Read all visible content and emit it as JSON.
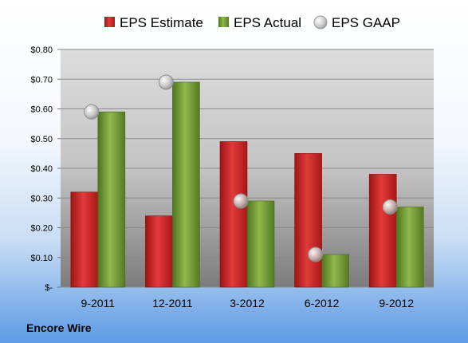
{
  "chart_data": {
    "type": "bar",
    "categories": [
      "9-2011",
      "12-2011",
      "3-2012",
      "6-2012",
      "9-2012"
    ],
    "series": [
      {
        "name": "EPS Estimate",
        "values": [
          0.32,
          0.24,
          0.49,
          0.45,
          0.38
        ],
        "color": "#d42a2a",
        "mark": "bar"
      },
      {
        "name": "EPS Actual",
        "values": [
          0.59,
          0.69,
          0.29,
          0.11,
          0.27
        ],
        "color": "#7aa23a",
        "mark": "bar"
      },
      {
        "name": "EPS GAAP",
        "values": [
          0.59,
          0.69,
          0.29,
          0.11,
          0.27
        ],
        "color": "#b8b8b8",
        "mark": "marker"
      }
    ],
    "ylim": [
      0,
      0.8
    ],
    "yticks": [
      0,
      0.1,
      0.2,
      0.3,
      0.4,
      0.5,
      0.6,
      0.7,
      0.8
    ],
    "ytick_labels": [
      "$-",
      "$0.10",
      "$0.20",
      "$0.30",
      "$0.40",
      "$0.50",
      "$0.60",
      "$0.70",
      "$0.80"
    ],
    "grid": true,
    "legend_position": "top"
  },
  "footer": {
    "company": "Encore Wire"
  }
}
